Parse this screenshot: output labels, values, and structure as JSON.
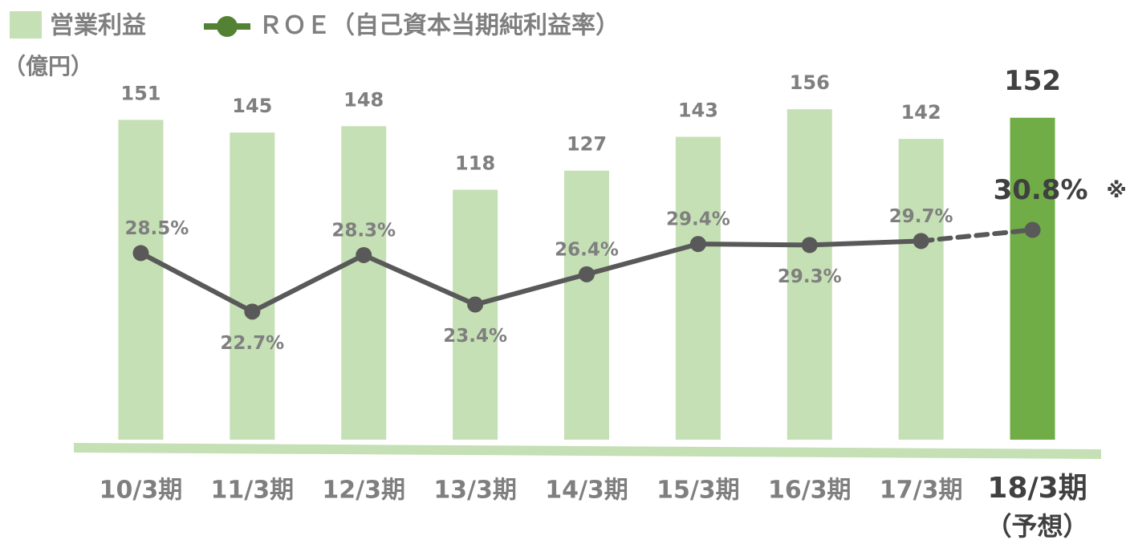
{
  "chart_data": {
    "type": "bar_line",
    "legend": [
      "営業利益",
      "ＲＯＥ（自己資本当期純利益率）"
    ],
    "unit_label": "（億円）",
    "categories": [
      "10/3期",
      "11/3期",
      "12/3期",
      "13/3期",
      "14/3期",
      "15/3期",
      "16/3期",
      "17/3期",
      "18/3期"
    ],
    "forecast_label": "（予想）",
    "series": [
      {
        "name": "営業利益",
        "color": "#c5e0b4",
        "highlight_color": "#70ad47",
        "values": [
          151,
          145,
          148,
          118,
          127,
          143,
          156,
          142,
          152
        ]
      },
      {
        "name": "ＲＯＥ（自己資本当期純利益率）",
        "axis": "y2",
        "color": "#595959",
        "marker_color": "#548235",
        "dash_last": true,
        "values": [
          28.5,
          22.7,
          28.3,
          23.4,
          26.4,
          29.4,
          29.3,
          29.7,
          30.8
        ],
        "value_labels": [
          "28.5%",
          "22.7%",
          "28.3%",
          "23.4%",
          "26.4%",
          "29.4%",
          "29.3%",
          "29.7%",
          "30.8%"
        ]
      }
    ],
    "annotation": "※",
    "ylim": [
      0,
      200
    ],
    "y2lim": [
      10,
      52
    ]
  }
}
